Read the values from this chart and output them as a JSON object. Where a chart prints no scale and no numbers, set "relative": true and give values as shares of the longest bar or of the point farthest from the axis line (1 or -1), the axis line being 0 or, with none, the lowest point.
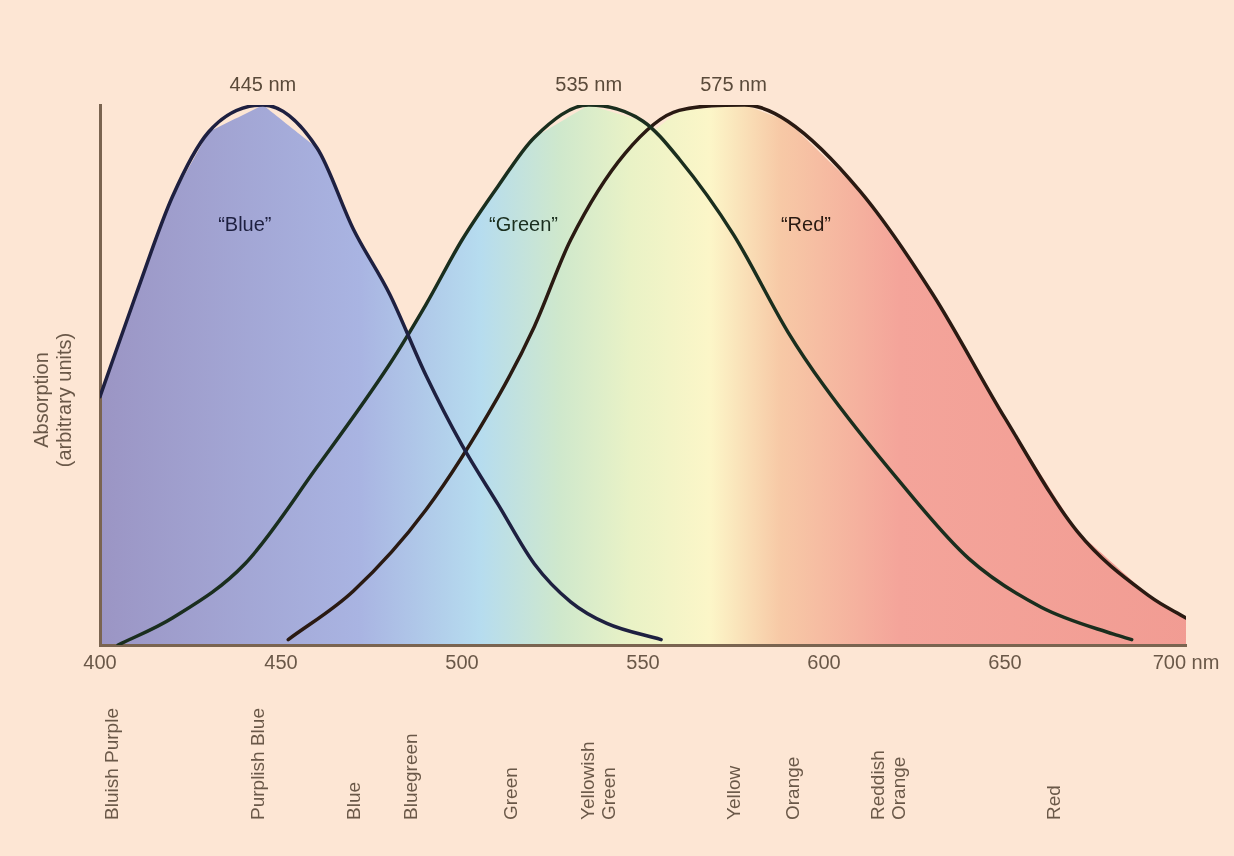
{
  "chart_data": {
    "type": "line",
    "relative": true,
    "ylabel": "Absorption (arbitrary units)",
    "xlim": [
      400,
      700
    ],
    "xticks": [
      400,
      450,
      500,
      550,
      600,
      650,
      {
        "value": 700,
        "label": "700 nm"
      }
    ],
    "grid": false,
    "legend": false,
    "marker": "none",
    "line_style": "solid",
    "series": [
      {
        "name": "“Blue”",
        "color": "#1e2040",
        "x": [
          400,
          410,
          420,
          430,
          445,
          460,
          470,
          480,
          490,
          500,
          510,
          520,
          530,
          540,
          555
        ],
        "values": [
          0.46,
          0.65,
          0.83,
          0.95,
          1.0,
          0.92,
          0.77,
          0.65,
          0.5,
          0.37,
          0.26,
          0.15,
          0.08,
          0.04,
          0.01
        ]
      },
      {
        "name": "“Green”",
        "color": "#1a2e1e",
        "x": [
          405,
          420,
          440,
          460,
          480,
          490,
          500,
          510,
          520,
          535,
          550,
          560,
          575,
          590,
          600,
          620,
          640,
          660,
          680,
          685
        ],
        "values": [
          0.0,
          0.05,
          0.15,
          0.33,
          0.52,
          0.63,
          0.75,
          0.85,
          0.94,
          1.0,
          0.97,
          0.9,
          0.76,
          0.58,
          0.48,
          0.31,
          0.16,
          0.07,
          0.02,
          0.01
        ]
      },
      {
        "name": "“Red”",
        "color": "#2a1a12",
        "x": [
          452,
          470,
          490,
          510,
          520,
          530,
          545,
          560,
          578,
          590,
          610,
          630,
          650,
          670,
          690,
          700
        ],
        "values": [
          0.01,
          0.1,
          0.25,
          0.46,
          0.59,
          0.75,
          0.91,
          0.99,
          1.0,
          0.97,
          0.84,
          0.65,
          0.42,
          0.21,
          0.09,
          0.05
        ]
      }
    ],
    "annotations": [
      {
        "text": "445 nm",
        "x": 445,
        "y": 1.0
      },
      {
        "text": "535 nm",
        "x": 535,
        "y": 1.0
      },
      {
        "text": "575 nm",
        "x": 575,
        "y": 1.0
      },
      "Bluish Purple",
      "Purplish Blue",
      "Blue",
      "Bluegreen",
      "Green",
      "Yellowish Green",
      "Yellow",
      "Orange",
      "Reddish Orange",
      "Red"
    ]
  }
}
